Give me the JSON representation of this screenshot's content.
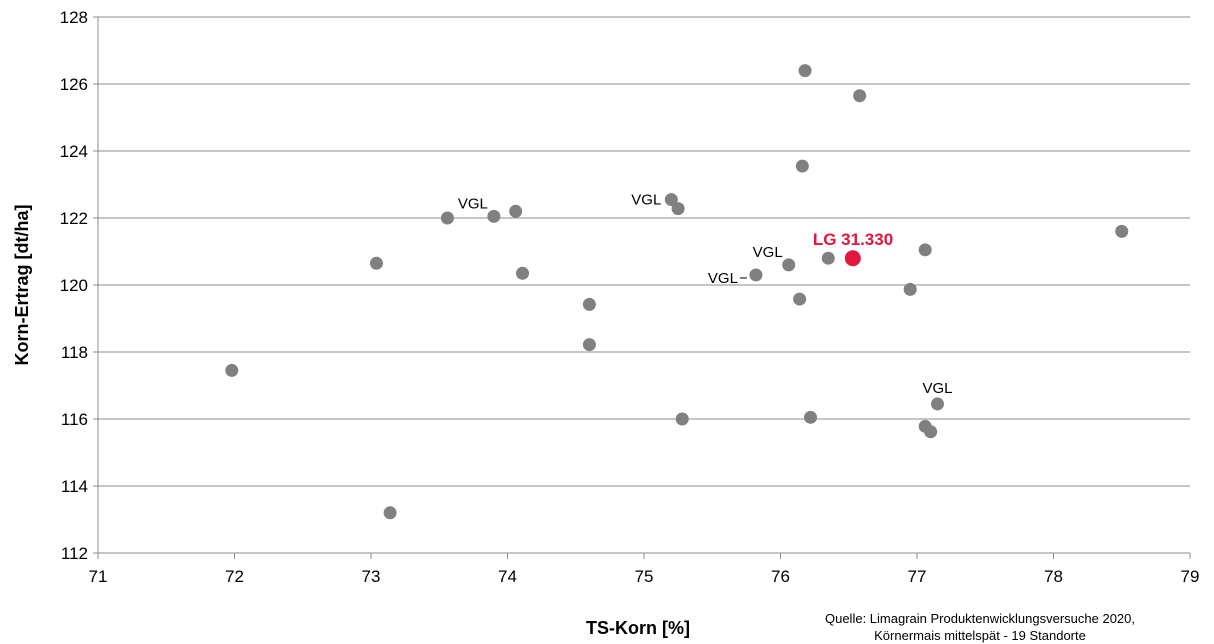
{
  "chart_data": {
    "type": "scatter",
    "xlabel": "TS-Korn [%]",
    "ylabel": "Korn-Ertrag  [dt/ha]",
    "xlim": [
      71,
      79
    ],
    "ylim": [
      112,
      128
    ],
    "x_ticks": [
      "71",
      "72",
      "73",
      "74",
      "75",
      "76",
      "77",
      "78",
      "79"
    ],
    "y_ticks": [
      "112",
      "114",
      "116",
      "118",
      "120",
      "122",
      "124",
      "126",
      "128"
    ],
    "grid": "horizontal",
    "point_color": "#808080",
    "points": [
      {
        "x": 71.98,
        "y": 117.45
      },
      {
        "x": 73.04,
        "y": 120.65
      },
      {
        "x": 73.14,
        "y": 113.2
      },
      {
        "x": 73.56,
        "y": 122.0
      },
      {
        "x": 73.9,
        "y": 122.05
      },
      {
        "x": 74.06,
        "y": 122.2
      },
      {
        "x": 74.11,
        "y": 120.35
      },
      {
        "x": 74.6,
        "y": 119.42
      },
      {
        "x": 74.6,
        "y": 118.22
      },
      {
        "x": 75.2,
        "y": 122.55
      },
      {
        "x": 75.25,
        "y": 122.28
      },
      {
        "x": 75.28,
        "y": 116.0
      },
      {
        "x": 75.82,
        "y": 120.3
      },
      {
        "x": 76.06,
        "y": 120.6
      },
      {
        "x": 76.14,
        "y": 119.58
      },
      {
        "x": 76.16,
        "y": 123.55
      },
      {
        "x": 76.18,
        "y": 126.4
      },
      {
        "x": 76.22,
        "y": 116.05
      },
      {
        "x": 76.35,
        "y": 120.8
      },
      {
        "x": 76.58,
        "y": 125.65
      },
      {
        "x": 76.95,
        "y": 119.87
      },
      {
        "x": 77.06,
        "y": 121.05
      },
      {
        "x": 77.06,
        "y": 115.78
      },
      {
        "x": 77.1,
        "y": 115.62
      },
      {
        "x": 77.15,
        "y": 116.45
      },
      {
        "x": 78.5,
        "y": 121.6
      }
    ],
    "highlight": {
      "label": "LG 31.330",
      "x": 76.53,
      "y": 120.8,
      "color": "#e0173e"
    },
    "annotations": [
      {
        "text": "VGL",
        "x": 73.9,
        "y": 122.05
      },
      {
        "text": "VGL",
        "x": 75.2,
        "y": 122.55
      },
      {
        "text": "VGL",
        "x": 76.06,
        "y": 120.6
      },
      {
        "text": "VGL",
        "x": 75.82,
        "y": 120.3
      },
      {
        "text": "VGL",
        "x": 77.15,
        "y": 116.45
      }
    ]
  },
  "source": {
    "line1": "Quelle:  Limagrain Produktenwicklungsversuche  2020,",
    "line2": "Körnermais mittelspät - 19 Standorte"
  }
}
